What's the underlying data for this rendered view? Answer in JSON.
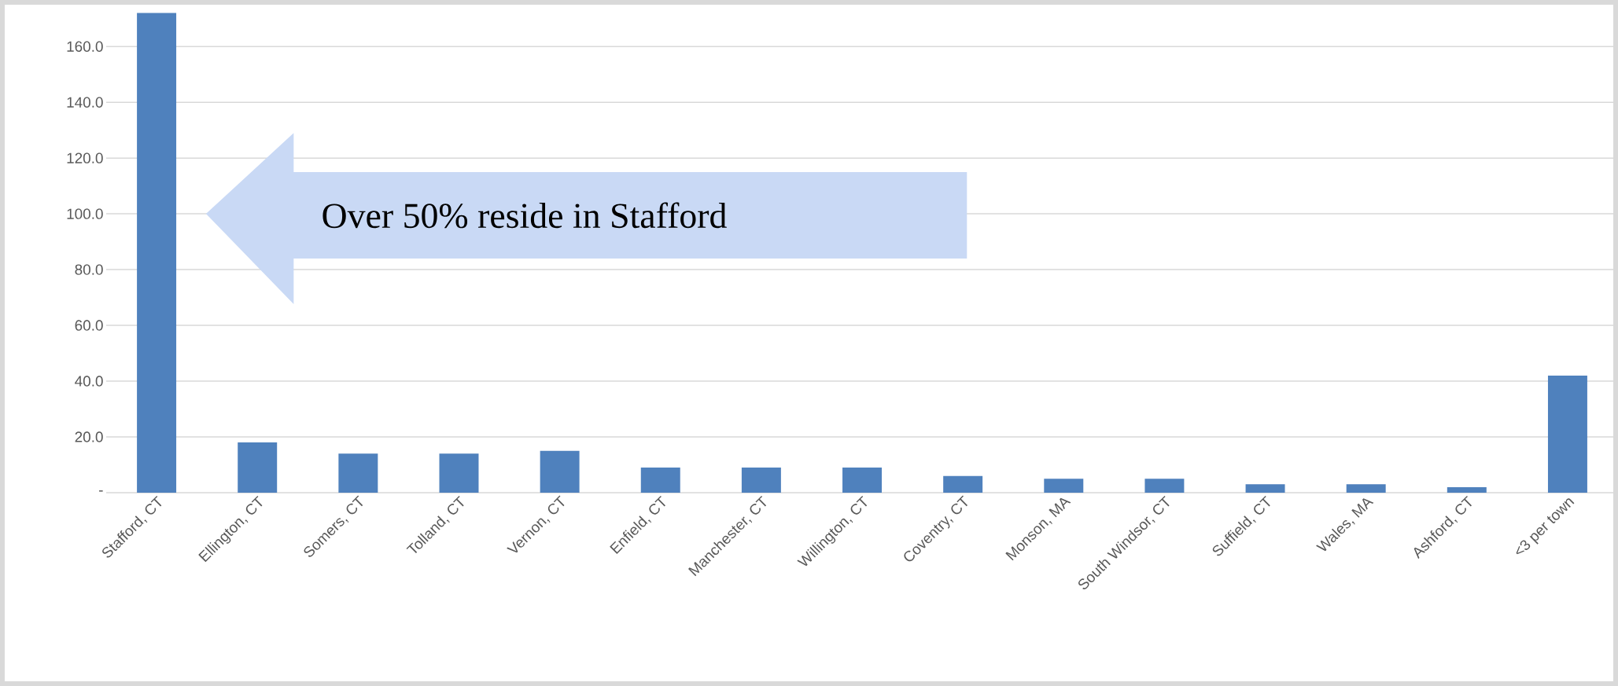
{
  "chart_data": {
    "type": "bar",
    "categories": [
      "Stafford, CT",
      "Ellington, CT",
      "Somers, CT",
      "Tolland, CT",
      "Vernon, CT",
      "Enfield, CT",
      "Manchester, CT",
      "Willington, CT",
      "Coventry, CT",
      "Monson, MA",
      "South Windsor, CT",
      "Suffield, CT",
      "Wales, MA",
      "Ashford, CT",
      "<3 per town"
    ],
    "values": [
      172,
      18,
      14,
      14,
      15,
      9,
      9,
      9,
      6,
      5,
      5,
      3,
      3,
      2,
      42
    ],
    "color": "#4f81bd",
    "ylim": [
      0,
      175
    ],
    "yticks": [
      {
        "value": 0,
        "label": "-"
      },
      {
        "value": 20,
        "label": "20.0"
      },
      {
        "value": 40,
        "label": "40.0"
      },
      {
        "value": 60,
        "label": "60.0"
      },
      {
        "value": 80,
        "label": "80.0"
      },
      {
        "value": 100,
        "label": "100.0"
      },
      {
        "value": 120,
        "label": "120.0"
      },
      {
        "value": 140,
        "label": "140.0"
      },
      {
        "value": 160,
        "label": "160.0"
      }
    ],
    "grid": "y",
    "annotations": [
      "Over 50% reside in Stafford"
    ]
  }
}
